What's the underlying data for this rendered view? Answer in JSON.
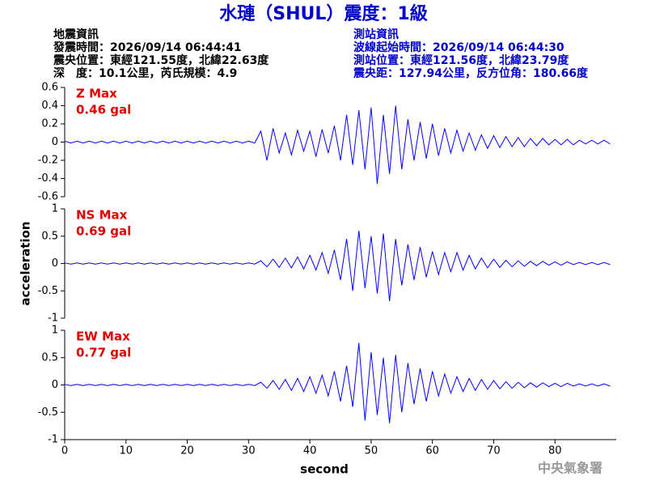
{
  "header": {
    "title": "水璉（SHUL）震度：1級",
    "left": [
      "地震資訊",
      "發震時間：2026/09/14 06:44:41",
      "震央位置：東經121.55度，北緯22.63度",
      "深　度：10.1公里，芮氏規模：4.9"
    ],
    "right": [
      "測站資訊",
      "波線起始時間：2026/09/14 06:44:30",
      "測站位置：東經121.56度，北緯23.79度",
      "震央距：127.94公里，反方位角：180.66度"
    ]
  },
  "footer": "中央氣象署",
  "chart_data": [
    {
      "type": "line",
      "annotations": [
        "Z Max",
        "0.46 gal"
      ],
      "color": "#0000ff",
      "xlim": [
        0,
        90
      ],
      "ylim": [
        -0.6,
        0.6
      ],
      "yticks": [
        0.6,
        0.4,
        0.2,
        0,
        -0.2,
        -0.4,
        -0.6
      ],
      "x": [
        0,
        1,
        2,
        3,
        4,
        5,
        6,
        7,
        8,
        9,
        10,
        11,
        12,
        13,
        14,
        15,
        16,
        17,
        18,
        19,
        20,
        21,
        22,
        23,
        24,
        25,
        26,
        27,
        28,
        29,
        30,
        31,
        32,
        33,
        34,
        35,
        36,
        37,
        38,
        39,
        40,
        41,
        42,
        43,
        44,
        45,
        46,
        47,
        48,
        49,
        50,
        51,
        52,
        53,
        54,
        55,
        56,
        57,
        58,
        59,
        60,
        61,
        62,
        63,
        64,
        65,
        66,
        67,
        68,
        69,
        70,
        71,
        72,
        73,
        74,
        75,
        76,
        77,
        78,
        79,
        80,
        81,
        82,
        83,
        84,
        85,
        86,
        87,
        88,
        89
      ],
      "values": [
        0.01,
        -0.01,
        0.01,
        -0.01,
        0.01,
        -0.01,
        0.01,
        -0.01,
        0.01,
        -0.01,
        0.01,
        -0.01,
        0.01,
        -0.01,
        0.01,
        -0.01,
        0.01,
        -0.01,
        0.01,
        -0.01,
        0.01,
        -0.01,
        0.01,
        -0.01,
        0.01,
        -0.01,
        0.01,
        -0.01,
        0.01,
        -0.01,
        0.01,
        -0.01,
        0.12,
        -0.2,
        0.15,
        -0.12,
        0.1,
        -0.14,
        0.13,
        -0.1,
        0.12,
        -0.16,
        0.14,
        -0.12,
        0.18,
        -0.2,
        0.3,
        -0.25,
        0.35,
        -0.3,
        0.38,
        -0.46,
        0.3,
        -0.35,
        0.4,
        -0.3,
        0.25,
        -0.2,
        0.22,
        -0.18,
        0.2,
        -0.15,
        0.15,
        -0.12,
        0.13,
        -0.1,
        0.1,
        -0.09,
        0.08,
        -0.07,
        0.07,
        -0.06,
        0.06,
        -0.05,
        0.05,
        -0.05,
        0.04,
        -0.04,
        0.04,
        -0.03,
        0.03,
        -0.03,
        0.03,
        -0.03,
        0.02,
        -0.02,
        0.02,
        -0.02,
        0.02,
        -0.02
      ]
    },
    {
      "type": "line",
      "annotations": [
        "NS Max",
        "0.69 gal"
      ],
      "color": "#0000ff",
      "ylabel": "acceleration",
      "xlim": [
        0,
        90
      ],
      "ylim": [
        -1,
        1
      ],
      "yticks": [
        1,
        0.5,
        0,
        -0.5,
        -1
      ],
      "x": [
        0,
        1,
        2,
        3,
        4,
        5,
        6,
        7,
        8,
        9,
        10,
        11,
        12,
        13,
        14,
        15,
        16,
        17,
        18,
        19,
        20,
        21,
        22,
        23,
        24,
        25,
        26,
        27,
        28,
        29,
        30,
        31,
        32,
        33,
        34,
        35,
        36,
        37,
        38,
        39,
        40,
        41,
        42,
        43,
        44,
        45,
        46,
        47,
        48,
        49,
        50,
        51,
        52,
        53,
        54,
        55,
        56,
        57,
        58,
        59,
        60,
        61,
        62,
        63,
        64,
        65,
        66,
        67,
        68,
        69,
        70,
        71,
        72,
        73,
        74,
        75,
        76,
        77,
        78,
        79,
        80,
        81,
        82,
        83,
        84,
        85,
        86,
        87,
        88,
        89
      ],
      "values": [
        0.01,
        -0.01,
        0.01,
        -0.01,
        0.01,
        -0.01,
        0.01,
        -0.01,
        0.01,
        -0.01,
        0.01,
        -0.01,
        0.01,
        -0.01,
        0.01,
        -0.01,
        0.01,
        -0.01,
        0.01,
        -0.01,
        0.01,
        -0.01,
        0.01,
        -0.01,
        0.01,
        -0.01,
        0.01,
        -0.01,
        0.01,
        -0.01,
        0.01,
        -0.01,
        0.05,
        -0.06,
        0.08,
        -0.07,
        0.1,
        -0.08,
        0.12,
        -0.1,
        0.15,
        -0.12,
        0.2,
        -0.18,
        0.25,
        -0.3,
        0.45,
        -0.5,
        0.6,
        -0.45,
        0.5,
        -0.55,
        0.55,
        -0.69,
        0.45,
        -0.4,
        0.35,
        -0.3,
        0.3,
        -0.25,
        0.22,
        -0.2,
        0.2,
        -0.15,
        0.2,
        -0.12,
        0.15,
        -0.1,
        0.1,
        -0.08,
        0.08,
        -0.07,
        0.06,
        -0.06,
        0.05,
        -0.05,
        0.04,
        -0.04,
        0.04,
        -0.03,
        0.03,
        -0.03,
        0.03,
        -0.02,
        0.02,
        -0.02,
        0.02,
        -0.02,
        0.02,
        -0.02
      ]
    },
    {
      "type": "line",
      "annotations": [
        "EW Max",
        "0.77 gal"
      ],
      "color": "#0000ff",
      "xlabel": "second",
      "xlim": [
        0,
        90
      ],
      "ylim": [
        -1,
        1
      ],
      "yticks": [
        1,
        0.5,
        0,
        -0.5,
        -1
      ],
      "xticks": [
        0,
        10,
        20,
        30,
        40,
        50,
        60,
        70,
        80
      ],
      "x": [
        0,
        1,
        2,
        3,
        4,
        5,
        6,
        7,
        8,
        9,
        10,
        11,
        12,
        13,
        14,
        15,
        16,
        17,
        18,
        19,
        20,
        21,
        22,
        23,
        24,
        25,
        26,
        27,
        28,
        29,
        30,
        31,
        32,
        33,
        34,
        35,
        36,
        37,
        38,
        39,
        40,
        41,
        42,
        43,
        44,
        45,
        46,
        47,
        48,
        49,
        50,
        51,
        52,
        53,
        54,
        55,
        56,
        57,
        58,
        59,
        60,
        61,
        62,
        63,
        64,
        65,
        66,
        67,
        68,
        69,
        70,
        71,
        72,
        73,
        74,
        75,
        76,
        77,
        78,
        79,
        80,
        81,
        82,
        83,
        84,
        85,
        86,
        87,
        88,
        89
      ],
      "values": [
        0.01,
        -0.01,
        0.01,
        -0.01,
        0.01,
        -0.01,
        0.01,
        -0.01,
        0.01,
        -0.01,
        0.01,
        -0.01,
        0.01,
        -0.01,
        0.01,
        -0.01,
        0.01,
        -0.01,
        0.01,
        -0.01,
        0.01,
        -0.01,
        0.01,
        -0.01,
        0.01,
        -0.01,
        0.01,
        -0.01,
        0.01,
        -0.01,
        0.01,
        -0.01,
        0.05,
        -0.06,
        0.08,
        -0.08,
        0.1,
        -0.1,
        0.12,
        -0.12,
        0.15,
        -0.15,
        0.18,
        -0.2,
        0.25,
        -0.3,
        0.35,
        -0.4,
        0.77,
        -0.65,
        0.6,
        -0.55,
        0.5,
        -0.7,
        0.55,
        -0.5,
        0.4,
        -0.35,
        0.3,
        -0.3,
        0.25,
        -0.2,
        0.2,
        -0.15,
        0.15,
        -0.12,
        0.12,
        -0.1,
        0.1,
        -0.08,
        0.08,
        -0.07,
        0.06,
        -0.06,
        0.05,
        -0.05,
        0.04,
        -0.04,
        0.04,
        -0.03,
        0.03,
        -0.03,
        0.03,
        -0.02,
        0.02,
        -0.02,
        0.02,
        -0.02,
        0.02,
        -0.02
      ]
    }
  ]
}
